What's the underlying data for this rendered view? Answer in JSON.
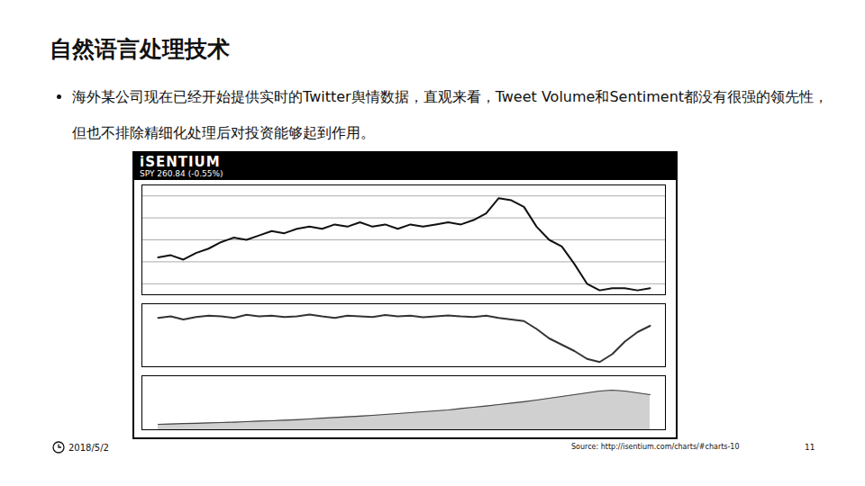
{
  "slide": {
    "title": "自然语言处理技术",
    "bullet": "海外某公司现在已经开始提供实时的Twitter舆情数据，直观来看，Tweet Volume和Sentiment都没有很强的领先性，但也不排除精细化处理后对投资能够起到作用。",
    "date": "2018/5/2",
    "source": "Source: http://isentium.com/charts/#charts-10",
    "page": "11"
  },
  "chart_data": [
    {
      "type": "line",
      "title": "iSENTIUM",
      "subtitle": "SPY 260.84 (-0.55%)",
      "categories": [
        null,
        null,
        null,
        null,
        null,
        null,
        null,
        null,
        null,
        null,
        null,
        null,
        null,
        null,
        null,
        null,
        null,
        null,
        null,
        null,
        null,
        null,
        null,
        null,
        null,
        null,
        null,
        null,
        null,
        null,
        null,
        null,
        null,
        null,
        null,
        null,
        null,
        null,
        null,
        null
      ],
      "values": [
        262.2,
        262.3,
        262.1,
        262.4,
        262.6,
        262.9,
        263.1,
        263.0,
        263.2,
        263.4,
        263.3,
        263.5,
        263.6,
        263.5,
        263.7,
        263.6,
        263.8,
        263.6,
        263.7,
        263.5,
        263.7,
        263.6,
        263.7,
        263.8,
        263.7,
        263.9,
        264.2,
        264.9,
        264.8,
        264.5,
        263.6,
        263.0,
        262.7,
        261.9,
        261.0,
        260.7,
        260.8,
        260.8,
        260.7,
        260.8
      ],
      "color": "#111111",
      "ylim": [
        260.5,
        265.5
      ],
      "yticks": [
        261,
        262,
        263,
        264,
        265
      ],
      "grid": true,
      "tick_labels": false
    },
    {
      "type": "line",
      "categories": [
        null,
        null,
        null,
        null,
        null,
        null,
        null,
        null,
        null,
        null,
        null,
        null,
        null,
        null,
        null,
        null,
        null,
        null,
        null,
        null,
        null,
        null,
        null,
        null,
        null,
        null,
        null,
        null,
        null,
        null,
        null,
        null,
        null,
        null,
        null,
        null,
        null,
        null,
        null,
        null
      ],
      "values": [
        0.55,
        0.6,
        0.5,
        0.58,
        0.62,
        0.6,
        0.55,
        0.65,
        0.6,
        0.62,
        0.58,
        0.6,
        0.66,
        0.6,
        0.55,
        0.62,
        0.6,
        0.58,
        0.64,
        0.6,
        0.62,
        0.57,
        0.6,
        0.63,
        0.6,
        0.58,
        0.62,
        0.55,
        0.5,
        0.45,
        0.2,
        -0.1,
        -0.3,
        -0.5,
        -0.75,
        -0.85,
        -0.6,
        -0.2,
        0.1,
        0.3
      ],
      "color": "#333333",
      "ylim": [
        -1,
        1
      ],
      "yticks": [
        -1,
        -0.5,
        0,
        0.5,
        1
      ],
      "grid": false,
      "tick_labels": false
    },
    {
      "type": "area",
      "categories": [
        null,
        null,
        null,
        null,
        null,
        null,
        null,
        null,
        null,
        null,
        null,
        null,
        null,
        null,
        null,
        null,
        null,
        null,
        null,
        null,
        null,
        null,
        null,
        null,
        null,
        null,
        null,
        null,
        null,
        null,
        null,
        null,
        null,
        null,
        null,
        null,
        null,
        null,
        null,
        null
      ],
      "values": [
        300,
        320,
        340,
        360,
        380,
        400,
        420,
        450,
        480,
        500,
        530,
        560,
        600,
        640,
        680,
        720,
        760,
        800,
        850,
        900,
        950,
        1000,
        1050,
        1100,
        1180,
        1250,
        1320,
        1400,
        1480,
        1560,
        1650,
        1750,
        1850,
        1950,
        2050,
        2150,
        2200,
        2150,
        2050,
        1950
      ],
      "color": "#444444",
      "ylim": [
        0,
        3000
      ],
      "yticks": [
        0,
        1000,
        2000,
        3000
      ],
      "grid": false,
      "tick_labels": false
    }
  ]
}
